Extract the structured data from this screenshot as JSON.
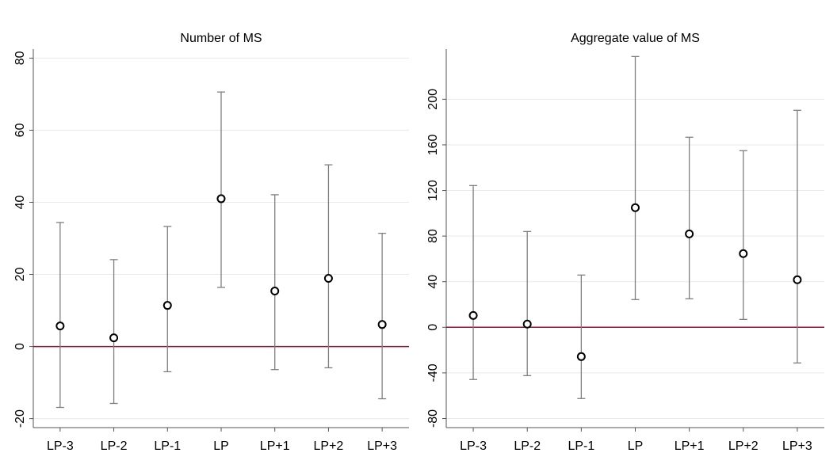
{
  "chart_data": [
    {
      "type": "errorbar",
      "title": "Number of MS",
      "categories": [
        "LP-3",
        "LP-2",
        "LP-1",
        "LP",
        "LP+1",
        "LP+2",
        "LP+3"
      ],
      "values": [
        5.7,
        2.4,
        11.4,
        41.0,
        15.4,
        18.9,
        6.1
      ],
      "lower": [
        -16.9,
        -15.8,
        -7.0,
        16.4,
        -6.4,
        -5.9,
        -14.5
      ],
      "upper": [
        34.4,
        24.1,
        33.3,
        70.6,
        42.1,
        50.4,
        31.4
      ],
      "color": "#000000",
      "ci_color": "#7f7f7f",
      "ylim": [
        -22.5,
        82.5
      ],
      "yticks": [
        -20,
        0,
        20,
        40,
        60,
        80
      ],
      "grid": true,
      "refline": {
        "value": 0,
        "color": "#b5002f"
      }
    },
    {
      "type": "errorbar",
      "title": "Aggregate value of MS",
      "categories": [
        "LP-3",
        "LP-2",
        "LP-1",
        "LP",
        "LP+1",
        "LP+2",
        "LP+3"
      ],
      "values": [
        10.4,
        2.8,
        -25.7,
        104.9,
        81.9,
        64.6,
        41.7
      ],
      "lower": [
        -45.8,
        -42.4,
        -62.5,
        24.3,
        25.0,
        6.9,
        -31.3
      ],
      "upper": [
        124.3,
        84.0,
        45.8,
        237.5,
        166.7,
        154.9,
        190.3
      ],
      "color": "#000000",
      "ci_color": "#7f7f7f",
      "ylim": [
        -88,
        244
      ],
      "yticks": [
        -80,
        -40,
        0,
        40,
        80,
        120,
        160,
        200
      ],
      "grid": true,
      "refline": {
        "value": 0,
        "color": "#b5002f"
      }
    }
  ]
}
